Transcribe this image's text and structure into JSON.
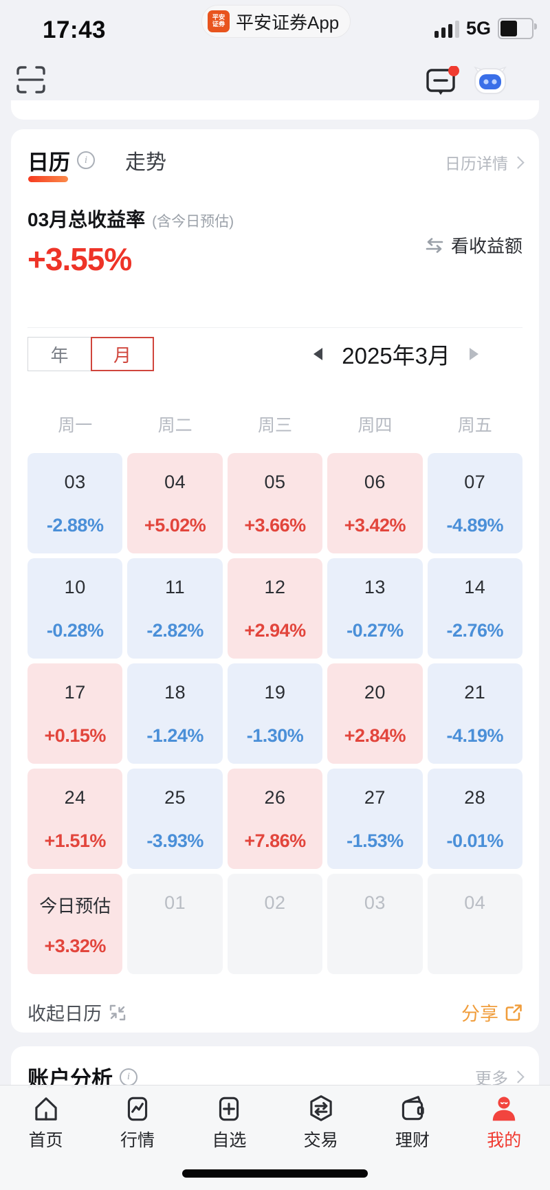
{
  "status_bar": {
    "time": "17:43",
    "logo_line1": "平安",
    "logo_line2": "证券",
    "app_badge": "平安证券App",
    "network": "5G"
  },
  "header": {
    "left_icon": "scan-icon",
    "right_icons": [
      "message-icon",
      "ai-assistant-icon"
    ],
    "message_has_badge": true
  },
  "calendar_card": {
    "tabs": [
      {
        "label": "日历",
        "active": true
      },
      {
        "label": "走势",
        "active": false
      }
    ],
    "detail_link": "日历详情",
    "summary": {
      "title": "03月总收益率",
      "subtitle": "(含今日预估)",
      "value": "+3.55%",
      "switch_label": "看收益额",
      "switch_icon": "swap-icon"
    },
    "period_toggle": {
      "options": [
        "年",
        "月"
      ],
      "selected": "月"
    },
    "month_nav": {
      "label": "2025年3月",
      "prev_icon": "prev-arrow-icon",
      "next_icon": "next-arrow-icon"
    },
    "weekdays": [
      "周一",
      "周二",
      "周三",
      "周四",
      "周五"
    ],
    "cells": [
      {
        "day": "03",
        "value": "-2.88%",
        "type": "down"
      },
      {
        "day": "04",
        "value": "+5.02%",
        "type": "up"
      },
      {
        "day": "05",
        "value": "+3.66%",
        "type": "up"
      },
      {
        "day": "06",
        "value": "+3.42%",
        "type": "up"
      },
      {
        "day": "07",
        "value": "-4.89%",
        "type": "down"
      },
      {
        "day": "10",
        "value": "-0.28%",
        "type": "down"
      },
      {
        "day": "11",
        "value": "-2.82%",
        "type": "down"
      },
      {
        "day": "12",
        "value": "+2.94%",
        "type": "up"
      },
      {
        "day": "13",
        "value": "-0.27%",
        "type": "down"
      },
      {
        "day": "14",
        "value": "-2.76%",
        "type": "down"
      },
      {
        "day": "17",
        "value": "+0.15%",
        "type": "up"
      },
      {
        "day": "18",
        "value": "-1.24%",
        "type": "down"
      },
      {
        "day": "19",
        "value": "-1.30%",
        "type": "down"
      },
      {
        "day": "20",
        "value": "+2.84%",
        "type": "up"
      },
      {
        "day": "21",
        "value": "-4.19%",
        "type": "down"
      },
      {
        "day": "24",
        "value": "+1.51%",
        "type": "up"
      },
      {
        "day": "25",
        "value": "-3.93%",
        "type": "down"
      },
      {
        "day": "26",
        "value": "+7.86%",
        "type": "up"
      },
      {
        "day": "27",
        "value": "-1.53%",
        "type": "down"
      },
      {
        "day": "28",
        "value": "-0.01%",
        "type": "down"
      },
      {
        "day": "今日预估",
        "value": "+3.32%",
        "type": "today"
      },
      {
        "day": "01",
        "value": "",
        "type": "next"
      },
      {
        "day": "02",
        "value": "",
        "type": "next"
      },
      {
        "day": "03",
        "value": "",
        "type": "next"
      },
      {
        "day": "04",
        "value": "",
        "type": "next"
      }
    ],
    "collapse_label": "收起日历",
    "collapse_icon": "collapse-icon",
    "share_label": "分享",
    "share_icon": "share-external-icon"
  },
  "account_section": {
    "title": "账户分析",
    "info_icon": "info-icon",
    "more_label": "更多"
  },
  "tab_bar": {
    "items": [
      {
        "key": "home",
        "label": "首页",
        "icon": "home-icon",
        "active": false
      },
      {
        "key": "market",
        "label": "行情",
        "icon": "market-icon",
        "active": false
      },
      {
        "key": "watchlist",
        "label": "自选",
        "icon": "watchlist-icon",
        "active": false
      },
      {
        "key": "trade",
        "label": "交易",
        "icon": "trade-icon",
        "active": false
      },
      {
        "key": "wealth",
        "label": "理财",
        "icon": "wealth-icon",
        "active": false
      },
      {
        "key": "profile",
        "label": "我的",
        "icon": "profile-icon",
        "active": true
      }
    ]
  },
  "colors": {
    "up_red": "#e2453c",
    "down_blue": "#4a8fd8",
    "up_bg": "#fbe4e5",
    "down_bg": "#e9effa",
    "accent_red": "#ee3428",
    "share_orange": "#f09d3c"
  }
}
